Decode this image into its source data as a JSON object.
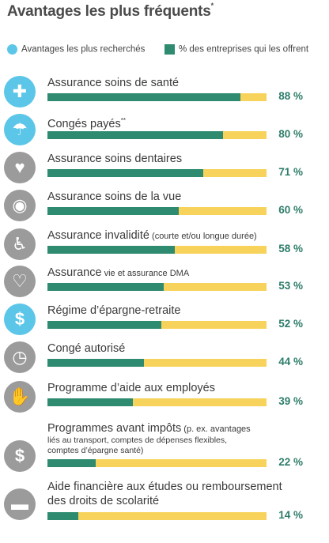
{
  "title": "Avantages les plus fréquents",
  "title_mark": "*",
  "legend": {
    "sought": "Avantages les plus recherchés",
    "offered": "% des entreprises qui les offrent"
  },
  "colors": {
    "sought": "#5bc6e8",
    "offered": "#2e8b70",
    "remainder": "#f7d35c",
    "icon": "#9b9b9b"
  },
  "chart_data": {
    "type": "bar",
    "orientation": "horizontal",
    "title": "Avantages les plus fréquents*",
    "xlim": [
      0,
      100
    ],
    "legend": [
      "Avantages les plus recherchés",
      "% des entreprises qui les offrent"
    ],
    "categories": [
      "Assurance soins de santé",
      "Congés payés**",
      "Assurance soins dentaires",
      "Assurance soins de la vue",
      "Assurance invalidité (courte et/ou longue durée)",
      "Assurance vie et assurance DMA",
      "Régime d’épargne-retraite",
      "Congé autorisé",
      "Programme d’aide aux employés",
      "Programmes avant impôts (p. ex. avantages liés au transport, comptes de dépenses flexibles, comptes d’épargne santé)",
      "Aide financière aux études ou remboursement des droits de scolarité"
    ],
    "series": [
      {
        "name": "% des entreprises qui les offrent",
        "values": [
          88,
          80,
          71,
          60,
          58,
          53,
          52,
          44,
          39,
          22,
          14
        ]
      }
    ],
    "most_sought": [
      true,
      true,
      false,
      false,
      false,
      false,
      true,
      false,
      false,
      false,
      false
    ]
  },
  "rows": [
    {
      "label": "Assurance soins de santé",
      "pct": "88 %",
      "icon": "plus-icon",
      "glyph": "✚"
    },
    {
      "label": "Congés payés",
      "sup": "**",
      "pct": "80 %",
      "icon": "beach-icon",
      "glyph": "☂"
    },
    {
      "label": "Assurance soins dentaires",
      "pct": "71 %",
      "icon": "tooth-icon",
      "glyph": "♥"
    },
    {
      "label": "Assurance soins de la vue",
      "pct": "60 %",
      "icon": "eye-icon",
      "glyph": "◉"
    },
    {
      "label": "Assurance invalidité",
      "note": " (courte et/ou longue durée)",
      "pct": "58 %",
      "icon": "wheelchair-icon",
      "glyph": "♿"
    },
    {
      "label": "Assurance",
      "note": " vie et assurance DMA",
      "pct": "53 %",
      "icon": "heartbeat-icon",
      "glyph": "♡"
    },
    {
      "label": "Régime d’épargne-retraite",
      "pct": "52 %",
      "icon": "savings-icon",
      "glyph": "$"
    },
    {
      "label": "Congé autorisé",
      "pct": "44 %",
      "icon": "clock-icon",
      "glyph": "◷"
    },
    {
      "label": "Programme d’aide aux employés",
      "pct": "39 %",
      "icon": "handshake-icon",
      "glyph": "✋"
    },
    {
      "label": "Programmes avant impôts",
      "note": " (p. ex. avantages",
      "sub": [
        "liés au transport, comptes de dépenses flexibles,",
        "comptes d’épargne santé)"
      ],
      "pct": "22 %",
      "icon": "dollar-icon",
      "glyph": "$"
    },
    {
      "label": "Aide financière aux études ou remboursement",
      "sub": [
        "des droits de scolarité"
      ],
      "pct": "14 %",
      "icon": "graduation-cap-icon",
      "glyph": "▬"
    }
  ]
}
